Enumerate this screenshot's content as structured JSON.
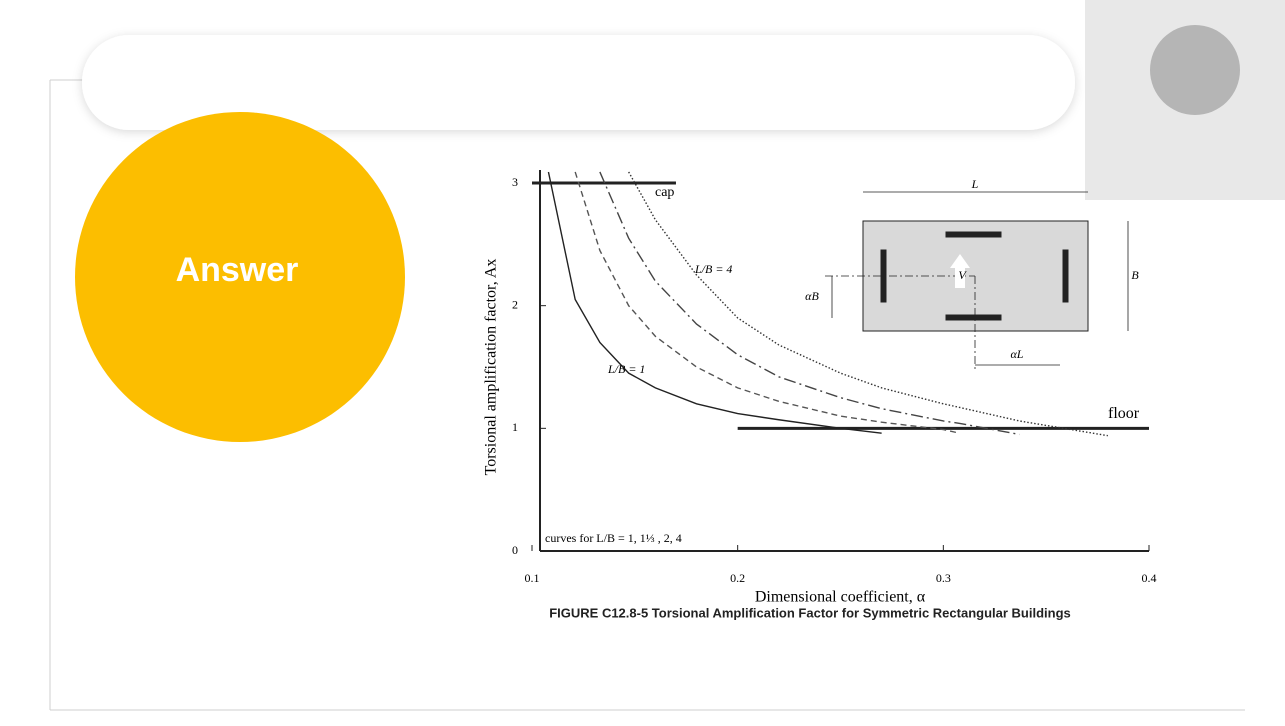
{
  "slide": {
    "heading": "Answer",
    "caption": "FIGURE C12.8-5 Torsional Amplification Factor for Symmetric Rectangular Buildings"
  },
  "chart_data": {
    "type": "line",
    "ylabel": "Torsional amplification factor, Ax",
    "xlabel": "Dimensional coefficient, α",
    "x": [
      0.108,
      0.121,
      0.133,
      0.147,
      0.16,
      0.18,
      0.2,
      0.22,
      0.25,
      0.27,
      0.3,
      0.308,
      0.337,
      0.38
    ],
    "series": [
      {
        "color": "#222222",
        "style": "solid",
        "values": [
          3.09,
          2.05,
          1.7,
          1.45,
          1.33,
          1.2,
          1.12,
          1.07,
          1.0,
          0.96,
          null,
          null,
          null,
          null
        ]
      },
      {
        "color": "#555555",
        "style": "dashed",
        "values": [
          null,
          3.09,
          2.45,
          2.0,
          1.75,
          1.5,
          1.33,
          1.22,
          1.1,
          1.05,
          0.99,
          0.96,
          null,
          null
        ]
      },
      {
        "color": "#444444",
        "style": "dashdot",
        "values": [
          null,
          null,
          3.09,
          2.55,
          2.2,
          1.85,
          1.6,
          1.42,
          1.25,
          1.16,
          1.06,
          1.04,
          0.95,
          null
        ]
      },
      {
        "color": "#333333",
        "style": "dotted",
        "values": [
          null,
          null,
          null,
          3.09,
          2.7,
          2.25,
          1.9,
          1.68,
          1.45,
          1.33,
          1.2,
          1.17,
          1.06,
          0.94
        ]
      }
    ],
    "reference_lines": [
      {
        "label": "cap",
        "value": 3,
        "x": [
          0.1,
          0.17
        ]
      },
      {
        "label": "floor",
        "value": 1,
        "x": [
          0.2,
          0.4
        ]
      }
    ],
    "annotations": [
      "L/B = 4",
      "L/B = 1",
      "curves for L/B = 1, 1⅓ , 2, 4"
    ],
    "inset_labels": [
      "L",
      "B",
      "V",
      "αB",
      "αL"
    ],
    "xlim": [
      0.1,
      0.4
    ],
    "xticks": [
      0.1,
      0.2,
      0.3,
      0.4
    ],
    "ylim": [
      0,
      3
    ],
    "yticks": [
      0,
      1,
      2,
      3
    ]
  }
}
